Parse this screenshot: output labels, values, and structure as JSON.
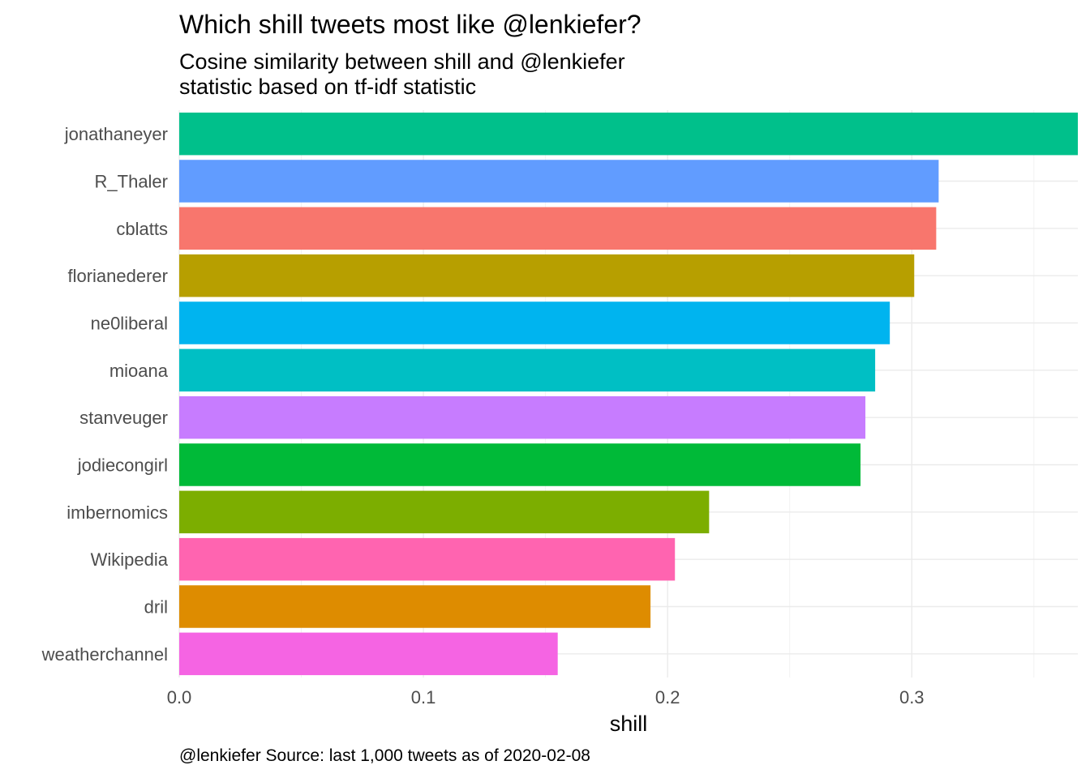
{
  "chart_data": {
    "type": "bar",
    "orientation": "horizontal",
    "title": "Which shill tweets most like @lenkiefer?",
    "subtitle": "Cosine similarity between shill and @lenkiefer\nstatistic based on tf-idf statistic",
    "xlabel": "shill",
    "ylabel": "",
    "caption": "@lenkiefer Source: last 1,000 tweets as of 2020-02-08",
    "xlim": [
      0,
      0.368
    ],
    "xticks": [
      0.0,
      0.1,
      0.2,
      0.3
    ],
    "xtick_labels": [
      "0.0",
      "0.1",
      "0.2",
      "0.3"
    ],
    "grid": true,
    "legend": "none",
    "categories": [
      "jonathaneyer",
      "R_Thaler",
      "cblatts",
      "florianederer",
      "ne0liberal",
      "mioana",
      "stanveuger",
      "jodiecongirl",
      "imbernomics",
      "Wikipedia",
      "dril",
      "weatherchannel"
    ],
    "values": [
      0.368,
      0.311,
      0.31,
      0.301,
      0.291,
      0.285,
      0.281,
      0.279,
      0.217,
      0.203,
      0.193,
      0.155
    ],
    "colors": [
      "#00C08B",
      "#619CFF",
      "#F8766D",
      "#B79F00",
      "#00B4EF",
      "#00BFC4",
      "#C77CFF",
      "#00BA38",
      "#7CAE00",
      "#FF64B0",
      "#DE8C00",
      "#F564E3"
    ]
  }
}
